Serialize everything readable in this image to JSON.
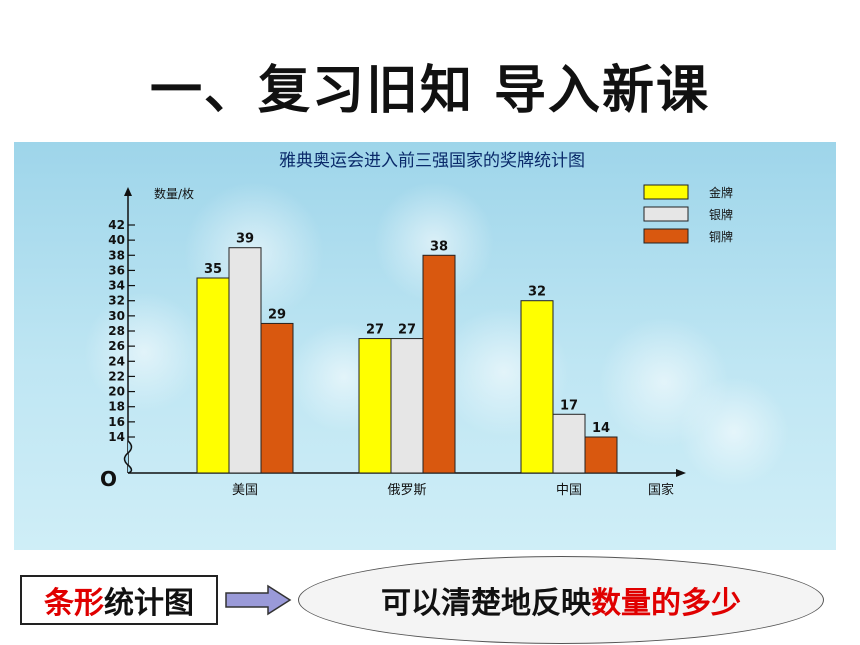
{
  "slide": {
    "title": "一、复习旧知    导入新课",
    "bottom_box": {
      "red_part": "条形",
      "black_part": "统计图"
    },
    "ellipse": {
      "black_part": "可以清楚地反映",
      "red_part": "数量的多少"
    }
  },
  "colors": {
    "gold": "#ffff00",
    "silver": "#e6e6e6",
    "bronze": "#d9580f",
    "panel": "#a8dcef"
  },
  "chart_data": {
    "type": "bar",
    "title": "雅典奥运会进入前三强国家的奖牌统计图",
    "ylabel": "数量/枚",
    "xlabel": "国家",
    "origin_label": "O",
    "categories": [
      "美国",
      "俄罗斯",
      "中国"
    ],
    "series": [
      {
        "name": "金牌",
        "values": [
          35,
          27,
          32
        ]
      },
      {
        "name": "银牌",
        "values": [
          39,
          27,
          17
        ]
      },
      {
        "name": "铜牌",
        "values": [
          29,
          38,
          14
        ]
      }
    ],
    "yticks": [
      14,
      16,
      18,
      20,
      22,
      24,
      26,
      28,
      30,
      32,
      34,
      36,
      38,
      40,
      42
    ],
    "ylim": [
      12,
      42
    ],
    "axis_break": true,
    "legend_position": "top-right",
    "grid": false
  }
}
